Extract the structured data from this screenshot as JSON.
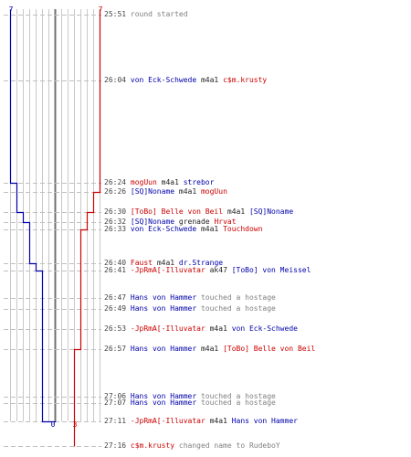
{
  "colors": {
    "red_team": "#cc0000",
    "blue_team": "#0000aa",
    "verb": "#222222",
    "system": "#808080",
    "time": "#444444",
    "grid": "#c8c8c8",
    "center_line": "#707070",
    "dash": "#c0c0c0"
  },
  "chart_data": {
    "type": "line",
    "score_axis": {
      "min": 0,
      "max": 7
    },
    "top_labels": {
      "blue": "7",
      "red": "7"
    },
    "bottom_labels": {
      "blue": "0",
      "red": "3"
    },
    "blue_series": [
      {
        "time": "25:51",
        "value": 7
      },
      {
        "time": "26:24",
        "value": 6
      },
      {
        "time": "26:26",
        "value": 6
      },
      {
        "time": "26:30",
        "value": 5
      },
      {
        "time": "26:32",
        "value": 4
      },
      {
        "time": "26:33",
        "value": 4
      },
      {
        "time": "26:40",
        "value": 3
      },
      {
        "time": "26:41",
        "value": 2
      },
      {
        "time": "27:06",
        "value": 2
      },
      {
        "time": "27:11",
        "value": 0
      }
    ],
    "red_series": [
      {
        "time": "25:51",
        "value": 7
      },
      {
        "time": "26:04",
        "value": 7
      },
      {
        "time": "26:26",
        "value": 6
      },
      {
        "time": "26:30",
        "value": 5
      },
      {
        "time": "26:33",
        "value": 4
      },
      {
        "time": "26:57",
        "value": 3
      },
      {
        "time": "27:16",
        "value": 3
      }
    ]
  },
  "events": [
    {
      "time": "25:51",
      "parts": [
        {
          "text": "round started",
          "role": "system"
        }
      ]
    },
    {
      "time": "26:04",
      "parts": [
        {
          "text": "von Eck-Schwede",
          "role": "blue"
        },
        {
          "text": " m4a1 ",
          "role": "verb"
        },
        {
          "text": "c$m.krusty",
          "role": "red"
        }
      ]
    },
    {
      "time": "26:24",
      "parts": [
        {
          "text": "mogUun",
          "role": "red"
        },
        {
          "text": " m4a1 ",
          "role": "verb"
        },
        {
          "text": "strebor",
          "role": "blue"
        }
      ]
    },
    {
      "time": "26:26",
      "parts": [
        {
          "text": "[SQ]Noname",
          "role": "blue"
        },
        {
          "text": " m4a1 ",
          "role": "verb"
        },
        {
          "text": "mogUun",
          "role": "red"
        }
      ]
    },
    {
      "time": "26:30",
      "parts": [
        {
          "text": "[ToBo] Belle von Beil",
          "role": "red"
        },
        {
          "text": " m4a1 ",
          "role": "verb"
        },
        {
          "text": "[SQ]Noname",
          "role": "blue"
        }
      ]
    },
    {
      "time": "26:32",
      "parts": [
        {
          "text": "[SQ]Noname",
          "role": "blue"
        },
        {
          "text": " grenade ",
          "role": "verb"
        },
        {
          "text": "Hrvat",
          "role": "red"
        }
      ]
    },
    {
      "time": "26:33",
      "parts": [
        {
          "text": "von Eck-Schwede",
          "role": "blue"
        },
        {
          "text": " m4a1 ",
          "role": "verb"
        },
        {
          "text": "Touchdown",
          "role": "red"
        }
      ]
    },
    {
      "time": "26:40",
      "parts": [
        {
          "text": "Faust",
          "role": "red"
        },
        {
          "text": " m4a1 ",
          "role": "verb"
        },
        {
          "text": "dr.Strange",
          "role": "blue"
        }
      ]
    },
    {
      "time": "26:41",
      "parts": [
        {
          "text": "-JpRmA[-Illuvatar",
          "role": "red"
        },
        {
          "text": " ak47 ",
          "role": "verb"
        },
        {
          "text": "[ToBo] von Meissel",
          "role": "blue"
        }
      ]
    },
    {
      "time": "26:47",
      "parts": [
        {
          "text": "Hans von Hammer",
          "role": "blue"
        },
        {
          "text": " touched a hostage",
          "role": "system"
        }
      ]
    },
    {
      "time": "26:49",
      "parts": [
        {
          "text": "Hans von Hammer",
          "role": "blue"
        },
        {
          "text": " touched a hostage",
          "role": "system"
        }
      ]
    },
    {
      "time": "26:53",
      "parts": [
        {
          "text": "-JpRmA[-Illuvatar",
          "role": "red"
        },
        {
          "text": " m4a1 ",
          "role": "verb"
        },
        {
          "text": "von Eck-Schwede",
          "role": "blue"
        }
      ]
    },
    {
      "time": "26:57",
      "parts": [
        {
          "text": "Hans von Hammer",
          "role": "blue"
        },
        {
          "text": " m4a1 ",
          "role": "verb"
        },
        {
          "text": "[ToBo] Belle von Beil",
          "role": "red"
        }
      ]
    },
    {
      "time": "27:06",
      "parts": [
        {
          "text": "Hans von Hammer",
          "role": "blue"
        },
        {
          "text": " touched a hostage",
          "role": "system"
        }
      ]
    },
    {
      "time": "27:07",
      "parts": [
        {
          "text": "Hans von Hammer",
          "role": "blue"
        },
        {
          "text": " touched a hostage",
          "role": "system"
        }
      ]
    },
    {
      "time": "27:11",
      "parts": [
        {
          "text": "-JpRmA[-Illuvatar",
          "role": "red"
        },
        {
          "text": " m4a1 ",
          "role": "verb"
        },
        {
          "text": "Hans von Hammer",
          "role": "blue"
        }
      ]
    },
    {
      "time": "27:16",
      "parts": [
        {
          "text": "c$m.krusty",
          "role": "red"
        },
        {
          "text": " changed name to RudeboY",
          "role": "system"
        }
      ]
    }
  ]
}
